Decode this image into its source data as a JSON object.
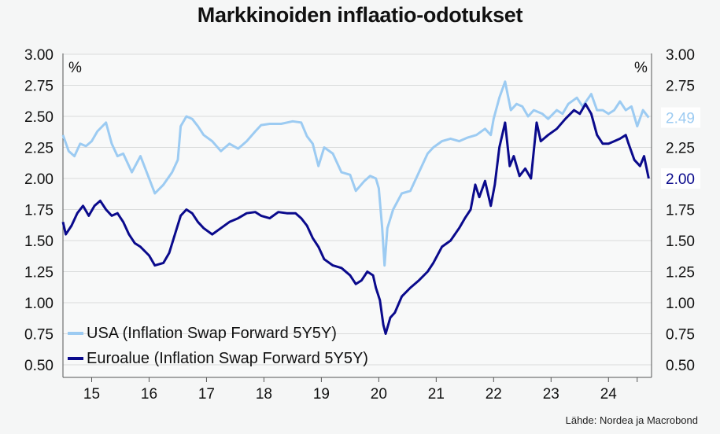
{
  "title": "Markkinoiden inflaatio-odotukset",
  "source": "Lähde: Nordea ja Macrobond",
  "colors": {
    "usa": "#9ccbf2",
    "euro": "#0a0a8c",
    "grid": "#dadcdc",
    "axis": "#555555",
    "usa_badge": "#ffffff"
  },
  "chart_data": {
    "type": "line",
    "title": "Markkinoiden inflaatio-odotukset",
    "y_unit_left": "%",
    "y_unit_right": "%",
    "ylim": [
      0.5,
      3.0
    ],
    "yticks": [
      "3.00",
      "2.75",
      "2.50",
      "2.25",
      "2.00",
      "1.75",
      "1.50",
      "1.25",
      "1.00",
      "0.75",
      "0.50"
    ],
    "yticks_right": [
      "3.00",
      "2.75",
      "2.50",
      "2.25",
      "2.00",
      "1.75",
      "1.50",
      "1.25",
      "1.00",
      "0.75",
      "0.50"
    ],
    "xtick_labels": [
      "15",
      "16",
      "17",
      "18",
      "19",
      "20",
      "21",
      "22",
      "23",
      "24"
    ],
    "xlim": [
      2014.5,
      2024.75
    ],
    "grid": true,
    "legend_position": "bottom-left",
    "end_labels": [
      "2.49",
      "2.00"
    ],
    "series": [
      {
        "name": "USA (Inflation Swap Forward 5Y5Y)",
        "points": [
          [
            2014.5,
            2.35
          ],
          [
            2014.6,
            2.22
          ],
          [
            2014.7,
            2.18
          ],
          [
            2014.8,
            2.28
          ],
          [
            2014.9,
            2.26
          ],
          [
            2015.0,
            2.3
          ],
          [
            2015.1,
            2.38
          ],
          [
            2015.25,
            2.45
          ],
          [
            2015.35,
            2.28
          ],
          [
            2015.45,
            2.18
          ],
          [
            2015.55,
            2.2
          ],
          [
            2015.7,
            2.05
          ],
          [
            2015.85,
            2.18
          ],
          [
            2016.0,
            2.0
          ],
          [
            2016.1,
            1.88
          ],
          [
            2016.25,
            1.95
          ],
          [
            2016.4,
            2.05
          ],
          [
            2016.5,
            2.15
          ],
          [
            2016.55,
            2.42
          ],
          [
            2016.65,
            2.5
          ],
          [
            2016.75,
            2.48
          ],
          [
            2016.85,
            2.42
          ],
          [
            2016.95,
            2.35
          ],
          [
            2017.1,
            2.3
          ],
          [
            2017.25,
            2.22
          ],
          [
            2017.4,
            2.28
          ],
          [
            2017.55,
            2.24
          ],
          [
            2017.7,
            2.3
          ],
          [
            2017.85,
            2.38
          ],
          [
            2017.95,
            2.43
          ],
          [
            2018.1,
            2.44
          ],
          [
            2018.3,
            2.44
          ],
          [
            2018.5,
            2.46
          ],
          [
            2018.65,
            2.45
          ],
          [
            2018.75,
            2.34
          ],
          [
            2018.85,
            2.28
          ],
          [
            2018.95,
            2.1
          ],
          [
            2019.05,
            2.25
          ],
          [
            2019.2,
            2.2
          ],
          [
            2019.35,
            2.05
          ],
          [
            2019.5,
            2.03
          ],
          [
            2019.6,
            1.9
          ],
          [
            2019.75,
            1.98
          ],
          [
            2019.85,
            2.02
          ],
          [
            2019.95,
            2.0
          ],
          [
            2020.0,
            1.92
          ],
          [
            2020.06,
            1.6
          ],
          [
            2020.1,
            1.3
          ],
          [
            2020.15,
            1.6
          ],
          [
            2020.25,
            1.75
          ],
          [
            2020.4,
            1.88
          ],
          [
            2020.55,
            1.9
          ],
          [
            2020.7,
            2.05
          ],
          [
            2020.85,
            2.2
          ],
          [
            2020.95,
            2.25
          ],
          [
            2021.1,
            2.3
          ],
          [
            2021.25,
            2.32
          ],
          [
            2021.4,
            2.3
          ],
          [
            2021.55,
            2.33
          ],
          [
            2021.7,
            2.35
          ],
          [
            2021.85,
            2.4
          ],
          [
            2021.95,
            2.35
          ],
          [
            2022.0,
            2.48
          ],
          [
            2022.1,
            2.65
          ],
          [
            2022.2,
            2.78
          ],
          [
            2022.3,
            2.55
          ],
          [
            2022.4,
            2.6
          ],
          [
            2022.5,
            2.58
          ],
          [
            2022.6,
            2.5
          ],
          [
            2022.7,
            2.55
          ],
          [
            2022.85,
            2.52
          ],
          [
            2022.95,
            2.48
          ],
          [
            2023.1,
            2.55
          ],
          [
            2023.2,
            2.52
          ],
          [
            2023.3,
            2.6
          ],
          [
            2023.45,
            2.65
          ],
          [
            2023.55,
            2.58
          ],
          [
            2023.7,
            2.68
          ],
          [
            2023.8,
            2.55
          ],
          [
            2023.9,
            2.55
          ],
          [
            2024.0,
            2.52
          ],
          [
            2024.1,
            2.55
          ],
          [
            2024.2,
            2.62
          ],
          [
            2024.3,
            2.55
          ],
          [
            2024.4,
            2.58
          ],
          [
            2024.5,
            2.42
          ],
          [
            2024.6,
            2.55
          ],
          [
            2024.7,
            2.49
          ]
        ]
      },
      {
        "name": "Euroalue (Inflation Swap Forward 5Y5Y)",
        "points": [
          [
            2014.5,
            1.65
          ],
          [
            2014.55,
            1.55
          ],
          [
            2014.65,
            1.62
          ],
          [
            2014.75,
            1.72
          ],
          [
            2014.85,
            1.78
          ],
          [
            2014.95,
            1.7
          ],
          [
            2015.05,
            1.78
          ],
          [
            2015.15,
            1.82
          ],
          [
            2015.25,
            1.75
          ],
          [
            2015.35,
            1.7
          ],
          [
            2015.45,
            1.72
          ],
          [
            2015.55,
            1.65
          ],
          [
            2015.65,
            1.55
          ],
          [
            2015.75,
            1.48
          ],
          [
            2015.85,
            1.45
          ],
          [
            2016.0,
            1.38
          ],
          [
            2016.1,
            1.3
          ],
          [
            2016.25,
            1.32
          ],
          [
            2016.35,
            1.4
          ],
          [
            2016.45,
            1.55
          ],
          [
            2016.55,
            1.7
          ],
          [
            2016.65,
            1.75
          ],
          [
            2016.75,
            1.72
          ],
          [
            2016.85,
            1.65
          ],
          [
            2016.95,
            1.6
          ],
          [
            2017.1,
            1.55
          ],
          [
            2017.25,
            1.6
          ],
          [
            2017.4,
            1.65
          ],
          [
            2017.55,
            1.68
          ],
          [
            2017.7,
            1.72
          ],
          [
            2017.85,
            1.73
          ],
          [
            2017.95,
            1.7
          ],
          [
            2018.1,
            1.68
          ],
          [
            2018.25,
            1.73
          ],
          [
            2018.4,
            1.72
          ],
          [
            2018.55,
            1.72
          ],
          [
            2018.65,
            1.68
          ],
          [
            2018.75,
            1.62
          ],
          [
            2018.85,
            1.52
          ],
          [
            2018.95,
            1.45
          ],
          [
            2019.05,
            1.35
          ],
          [
            2019.2,
            1.3
          ],
          [
            2019.35,
            1.28
          ],
          [
            2019.5,
            1.22
          ],
          [
            2019.6,
            1.15
          ],
          [
            2019.7,
            1.18
          ],
          [
            2019.8,
            1.25
          ],
          [
            2019.9,
            1.22
          ],
          [
            2019.95,
            1.12
          ],
          [
            2020.02,
            1.02
          ],
          [
            2020.08,
            0.82
          ],
          [
            2020.12,
            0.75
          ],
          [
            2020.2,
            0.88
          ],
          [
            2020.28,
            0.92
          ],
          [
            2020.4,
            1.05
          ],
          [
            2020.55,
            1.12
          ],
          [
            2020.7,
            1.18
          ],
          [
            2020.85,
            1.25
          ],
          [
            2020.95,
            1.32
          ],
          [
            2021.1,
            1.45
          ],
          [
            2021.25,
            1.5
          ],
          [
            2021.4,
            1.6
          ],
          [
            2021.5,
            1.68
          ],
          [
            2021.6,
            1.75
          ],
          [
            2021.68,
            1.95
          ],
          [
            2021.75,
            1.85
          ],
          [
            2021.85,
            1.98
          ],
          [
            2021.95,
            1.78
          ],
          [
            2022.02,
            1.95
          ],
          [
            2022.1,
            2.25
          ],
          [
            2022.2,
            2.45
          ],
          [
            2022.28,
            2.1
          ],
          [
            2022.35,
            2.18
          ],
          [
            2022.45,
            2.02
          ],
          [
            2022.55,
            2.08
          ],
          [
            2022.65,
            2.0
          ],
          [
            2022.75,
            2.45
          ],
          [
            2022.82,
            2.3
          ],
          [
            2022.95,
            2.35
          ],
          [
            2023.1,
            2.4
          ],
          [
            2023.25,
            2.48
          ],
          [
            2023.4,
            2.55
          ],
          [
            2023.5,
            2.52
          ],
          [
            2023.6,
            2.6
          ],
          [
            2023.7,
            2.52
          ],
          [
            2023.8,
            2.35
          ],
          [
            2023.9,
            2.28
          ],
          [
            2024.0,
            2.28
          ],
          [
            2024.1,
            2.3
          ],
          [
            2024.2,
            2.32
          ],
          [
            2024.3,
            2.35
          ],
          [
            2024.35,
            2.28
          ],
          [
            2024.45,
            2.15
          ],
          [
            2024.55,
            2.1
          ],
          [
            2024.62,
            2.18
          ],
          [
            2024.7,
            2.0
          ]
        ]
      }
    ]
  }
}
